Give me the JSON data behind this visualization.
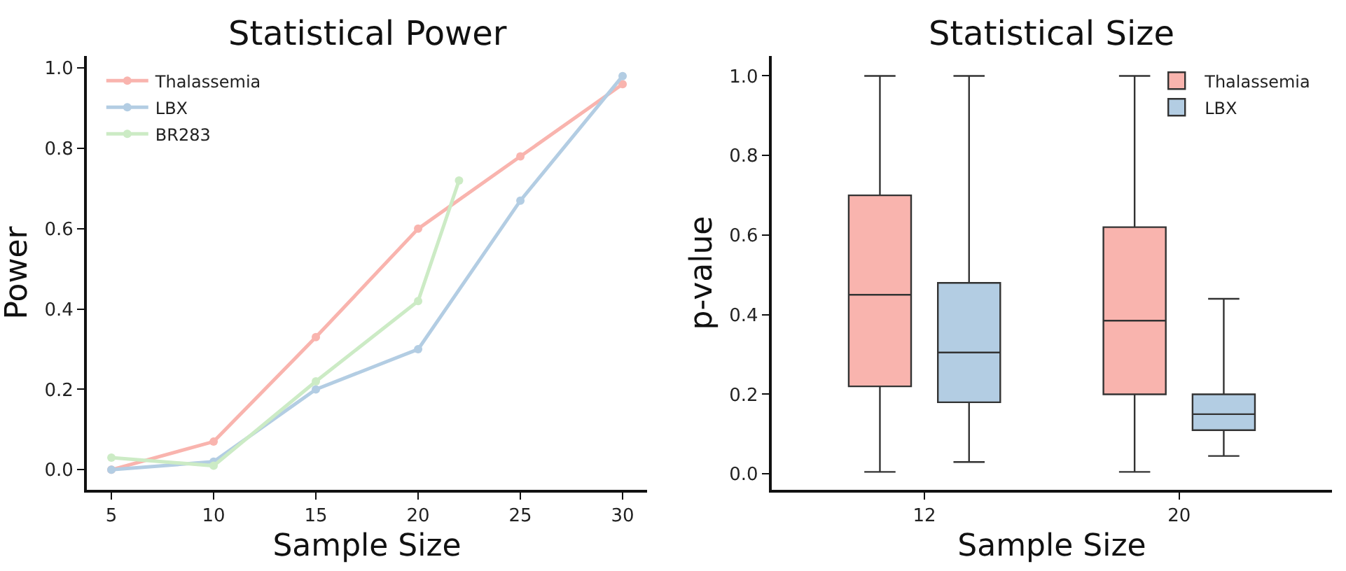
{
  "chart_data": [
    {
      "type": "line",
      "title": "Statistical Power",
      "xlabel": "Sample Size",
      "ylabel": "Power",
      "xlim": [
        3.8,
        31.2
      ],
      "xticks": [
        5,
        10,
        15,
        20,
        25,
        30
      ],
      "ylim": [
        -0.05,
        1.03
      ],
      "yticks": [
        {
          "value": 0,
          "label": "0.0"
        },
        {
          "value": 0.2,
          "label": "0.2"
        },
        {
          "value": 0.4,
          "label": "0.4"
        },
        {
          "value": 0.6,
          "label": "0.6"
        },
        {
          "value": 0.8,
          "label": "0.8"
        },
        {
          "value": 1,
          "label": "1.0"
        }
      ],
      "legend": "top left",
      "marker": "circle",
      "series": [
        {
          "name": "Thalassemia",
          "color": "#f9b4ae",
          "x": [
            5,
            10,
            15,
            20,
            25,
            30
          ],
          "values": [
            0.0,
            0.07,
            0.33,
            0.6,
            0.78,
            0.96
          ]
        },
        {
          "name": "LBX",
          "color": "#b3cde3",
          "x": [
            5,
            10,
            15,
            20,
            25,
            30
          ],
          "values": [
            0.0,
            0.02,
            0.2,
            0.3,
            0.67,
            0.98
          ]
        },
        {
          "name": "BR283",
          "color": "#ccebc5",
          "x": [
            5,
            10,
            15,
            20,
            22
          ],
          "values": [
            0.03,
            0.01,
            0.22,
            0.42,
            0.72
          ]
        }
      ]
    },
    {
      "type": "box",
      "title": "Statistical Size",
      "xlabel": "Sample Size",
      "ylabel": "p-value",
      "categories": [
        "12",
        "20"
      ],
      "ylim": [
        -0.04,
        1.05
      ],
      "yticks": [
        {
          "value": 0,
          "label": "0.0"
        },
        {
          "value": 0.2,
          "label": "0.2"
        },
        {
          "value": 0.4,
          "label": "0.4"
        },
        {
          "value": 0.6,
          "label": "0.6"
        },
        {
          "value": 0.8,
          "label": "0.8"
        },
        {
          "value": 1,
          "label": "1.0"
        }
      ],
      "legend": "top right",
      "series": [
        {
          "name": "Thalassemia",
          "color": "#f9b4ae",
          "boxes": [
            {
              "low": 0.005,
              "q1": 0.22,
              "median": 0.45,
              "q3": 0.7,
              "high": 1.0
            },
            {
              "low": 0.005,
              "q1": 0.2,
              "median": 0.385,
              "q3": 0.62,
              "high": 1.0
            }
          ]
        },
        {
          "name": "LBX",
          "color": "#b3cde3",
          "boxes": [
            {
              "low": 0.03,
              "q1": 0.18,
              "median": 0.305,
              "q3": 0.48,
              "high": 1.0
            },
            {
              "low": 0.045,
              "q1": 0.11,
              "median": 0.15,
              "q3": 0.2,
              "high": 0.44
            }
          ]
        }
      ]
    }
  ]
}
